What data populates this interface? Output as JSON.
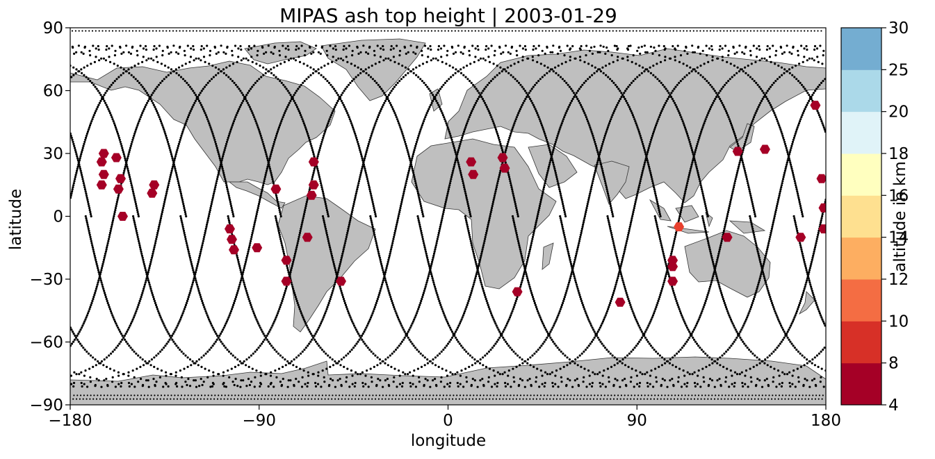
{
  "title": "MIPAS ash top height | 2003-01-29",
  "map": {
    "xlabel": "longitude",
    "ylabel": "latitude",
    "xlim": [
      -180,
      180
    ],
    "ylim": [
      -90,
      90
    ],
    "xticks": [
      -180,
      -90,
      0,
      90,
      180
    ],
    "xtick_labels": [
      "−180",
      "−90",
      "0",
      "90",
      "180"
    ],
    "yticks": [
      -90,
      -60,
      -30,
      0,
      30,
      60,
      90
    ],
    "ytick_labels": [
      "−90",
      "−60",
      "−30",
      "0",
      "30",
      "60",
      "90"
    ],
    "land_color": "#bfbfbf",
    "track_color": "#000000",
    "marker_shape": "hexagon"
  },
  "colorbar": {
    "label": "altitude in km",
    "boundaries": [
      4,
      8,
      10,
      12,
      14,
      16,
      18,
      20,
      25,
      30
    ],
    "tick_labels": [
      "4",
      "8",
      "10",
      "12",
      "14",
      "16",
      "18",
      "20",
      "25",
      "30"
    ],
    "colors": [
      "#a50026",
      "#d73027",
      "#f46d43",
      "#fdae61",
      "#fee090",
      "#ffffbf",
      "#e0f3f8",
      "#abd9e9",
      "#74add1",
      "#4575b4",
      "#313695"
    ],
    "used_colors": [
      "#a50026",
      "#d73027",
      "#f46d43",
      "#fdae61",
      "#fee090",
      "#ffffbf",
      "#e0f3f8",
      "#abd9e9",
      "#74add1",
      "#313695"
    ]
  },
  "ash_detections": [
    {
      "lon": -164,
      "lat": 30,
      "alt_km": 6
    },
    {
      "lon": -165,
      "lat": 26,
      "alt_km": 6
    },
    {
      "lon": -164,
      "lat": 20,
      "alt_km": 6
    },
    {
      "lon": -165,
      "lat": 15,
      "alt_km": 6
    },
    {
      "lon": -158,
      "lat": 28,
      "alt_km": 6
    },
    {
      "lon": -156,
      "lat": 18,
      "alt_km": 6
    },
    {
      "lon": -157,
      "lat": 13,
      "alt_km": 6
    },
    {
      "lon": -155,
      "lat": 0,
      "alt_km": 6
    },
    {
      "lon": -140,
      "lat": 15,
      "alt_km": 6
    },
    {
      "lon": -141,
      "lat": 11,
      "alt_km": 6
    },
    {
      "lon": -104,
      "lat": -6,
      "alt_km": 6
    },
    {
      "lon": -103,
      "lat": -11,
      "alt_km": 6
    },
    {
      "lon": -102,
      "lat": -16,
      "alt_km": 6
    },
    {
      "lon": -91,
      "lat": -15,
      "alt_km": 6
    },
    {
      "lon": -82,
      "lat": 13,
      "alt_km": 6
    },
    {
      "lon": -77,
      "lat": -21,
      "alt_km": 6
    },
    {
      "lon": -77,
      "lat": -31,
      "alt_km": 6
    },
    {
      "lon": -64,
      "lat": 26,
      "alt_km": 6
    },
    {
      "lon": -64,
      "lat": 15,
      "alt_km": 6
    },
    {
      "lon": -65,
      "lat": 10,
      "alt_km": 6
    },
    {
      "lon": -67,
      "lat": -10,
      "alt_km": 6
    },
    {
      "lon": -51,
      "lat": -31,
      "alt_km": 6
    },
    {
      "lon": 11,
      "lat": 26,
      "alt_km": 6
    },
    {
      "lon": 12,
      "lat": 20,
      "alt_km": 6
    },
    {
      "lon": 26,
      "lat": 28,
      "alt_km": 6
    },
    {
      "lon": 27,
      "lat": 23,
      "alt_km": 6
    },
    {
      "lon": 33,
      "lat": -36,
      "alt_km": 6
    },
    {
      "lon": 82,
      "lat": -41,
      "alt_km": 6
    },
    {
      "lon": 107,
      "lat": -21,
      "alt_km": 6
    },
    {
      "lon": 107,
      "lat": -24,
      "alt_km": 6
    },
    {
      "lon": 107,
      "lat": -31,
      "alt_km": 6
    },
    {
      "lon": 110,
      "lat": -5,
      "alt_km": 9
    },
    {
      "lon": 133,
      "lat": -10,
      "alt_km": 6
    },
    {
      "lon": 138,
      "lat": 31,
      "alt_km": 6
    },
    {
      "lon": 151,
      "lat": 32,
      "alt_km": 6
    },
    {
      "lon": 168,
      "lat": -10,
      "alt_km": 6
    },
    {
      "lon": 175,
      "lat": 53,
      "alt_km": 6
    },
    {
      "lon": 178,
      "lat": 18,
      "alt_km": 6
    },
    {
      "lon": 179,
      "lat": 4,
      "alt_km": 6
    },
    {
      "lon": 179,
      "lat": -6,
      "alt_km": 6
    }
  ]
}
